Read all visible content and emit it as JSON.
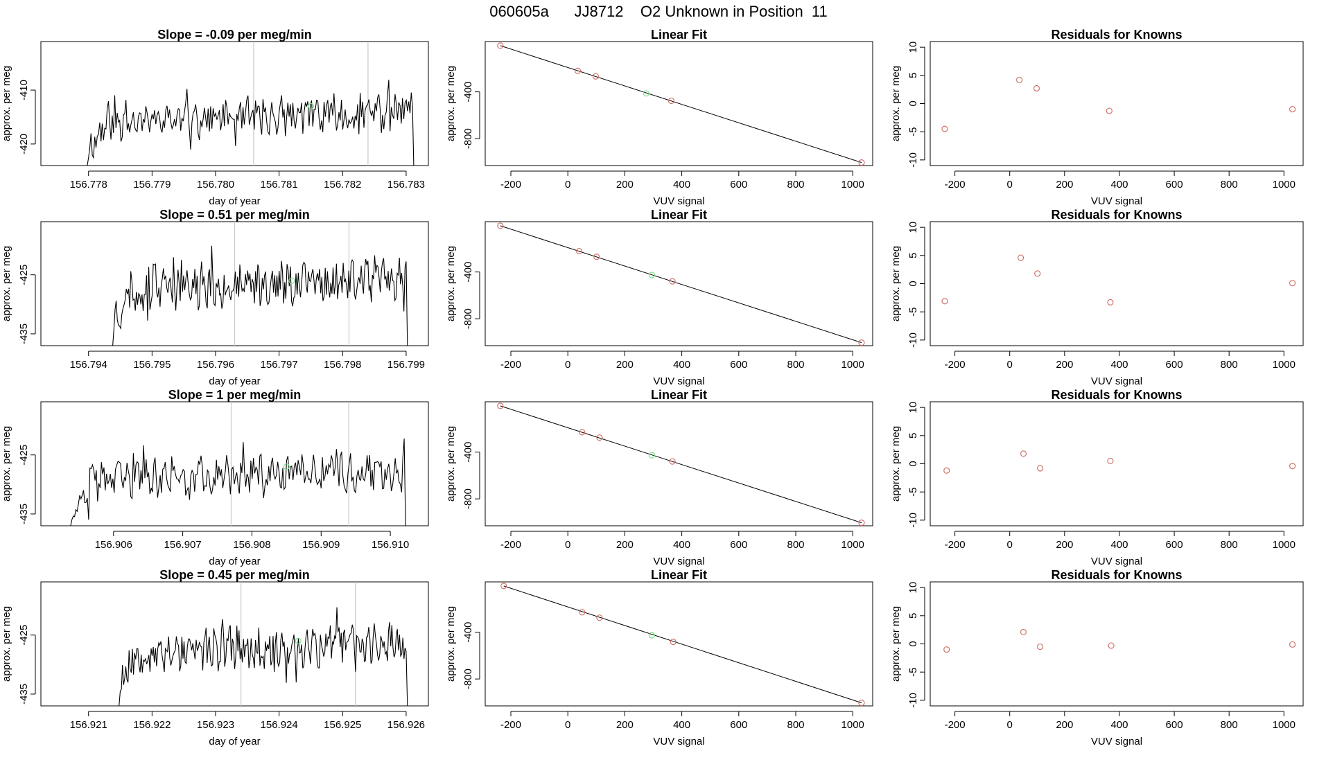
{
  "header": {
    "title": "060605a      JJ8712    O2 Unknown in Position  11"
  },
  "colors": {
    "line": "#000000",
    "known_point": "#d0736b",
    "unknown_point": "#7de08a",
    "marker_line": "#c8c8c8",
    "axis": "#000000"
  },
  "chart_data": [
    {
      "type": "line",
      "row": 1,
      "panel": "timeseries",
      "title": "Slope =  -0.09  per meg/min",
      "xlabel": "day of year",
      "ylabel": "approx. per meg",
      "xlim": [
        156.77725,
        156.78335
      ],
      "ylim": [
        -424,
        -401
      ],
      "xticks": [
        156.778,
        156.779,
        156.78,
        156.781,
        156.782,
        156.783
      ],
      "xtick_labels": [
        "156.778",
        "156.779",
        "156.780",
        "156.781",
        "156.782",
        "156.783"
      ],
      "yticks": [
        -410,
        -420
      ],
      "ytick_labels": [
        "-410",
        "-420"
      ],
      "vlines": [
        156.7806,
        156.7824
      ],
      "unknown_point": {
        "x": 156.7815,
        "y": -413
      },
      "trace": {
        "start": 156.778,
        "end": 156.7831,
        "base": -415.0,
        "amp": 3.0,
        "seed": 11,
        "drop": -424
      }
    },
    {
      "type": "scatter",
      "row": 1,
      "panel": "fit",
      "title": "Linear Fit",
      "xlabel": "VUV signal",
      "ylabel": "approx. per meg",
      "xlim": [
        -290,
        1070
      ],
      "ylim": [
        -1030,
        30
      ],
      "xticks": [
        -200,
        0,
        200,
        400,
        600,
        800,
        1000
      ],
      "xtick_labels": [
        "-200",
        "0",
        "200",
        "400",
        "600",
        "800",
        "1000"
      ],
      "yticks": [
        -400,
        -800
      ],
      "ytick_labels": [
        "-400",
        "-800"
      ],
      "fit_line": {
        "x": [
          -237,
          1031
        ],
        "y": [
          -5,
          -1004
        ]
      },
      "knowns": {
        "x": [
          -237,
          35,
          98,
          363,
          1031
        ],
        "y": [
          -5,
          -220,
          -268,
          -476,
          -1004
        ]
      },
      "unknown": {
        "x": 275,
        "y": -413
      }
    },
    {
      "type": "scatter",
      "row": 1,
      "panel": "residuals",
      "title": "Residuals for Knowns",
      "xlabel": "VUV signal",
      "ylabel": "approx. per meg",
      "xlim": [
        -290,
        1070
      ],
      "ylim": [
        -11,
        11
      ],
      "xticks": [
        -200,
        0,
        200,
        400,
        600,
        800,
        1000
      ],
      "xtick_labels": [
        "-200",
        "0",
        "200",
        "400",
        "600",
        "800",
        "1000"
      ],
      "yticks": [
        10,
        5,
        0,
        -5,
        -10
      ],
      "ytick_labels": [
        "10",
        "5",
        "0",
        "-5",
        "-10"
      ],
      "points": {
        "x": [
          -237,
          35,
          98,
          363,
          1031
        ],
        "y": [
          -4.5,
          4.2,
          2.7,
          -1.3,
          -1.0
        ]
      }
    },
    {
      "type": "line",
      "row": 2,
      "panel": "timeseries",
      "title": "Slope =  0.51  per meg/min",
      "xlabel": "day of year",
      "ylabel": "approx. per meg",
      "xlim": [
        156.79325,
        156.79935
      ],
      "ylim": [
        -437,
        -416
      ],
      "xticks": [
        156.794,
        156.795,
        156.796,
        156.797,
        156.798,
        156.799
      ],
      "xtick_labels": [
        "156.794",
        "156.795",
        "156.796",
        "156.797",
        "156.798",
        "156.799"
      ],
      "yticks": [
        -425,
        -435
      ],
      "ytick_labels": [
        "-425",
        "-435"
      ],
      "vlines": [
        156.7963,
        156.7981
      ],
      "unknown_point": {
        "x": 156.7972,
        "y": -426
      },
      "trace": {
        "start": 156.7944,
        "end": 156.799,
        "base": -426.5,
        "amp": 3.2,
        "seed": 23,
        "drop": -437
      }
    },
    {
      "type": "scatter",
      "row": 2,
      "panel": "fit",
      "title": "Linear Fit",
      "xlabel": "VUV signal",
      "ylabel": "approx. per meg",
      "xlim": [
        -290,
        1070
      ],
      "ylim": [
        -1030,
        30
      ],
      "xticks": [
        -200,
        0,
        200,
        400,
        600,
        800,
        1000
      ],
      "xtick_labels": [
        "-200",
        "0",
        "200",
        "400",
        "600",
        "800",
        "1000"
      ],
      "yticks": [
        -400,
        -800
      ],
      "ytick_labels": [
        "-400",
        "-800"
      ],
      "fit_line": {
        "x": [
          -237,
          1031
        ],
        "y": [
          -5,
          -1004
        ]
      },
      "knowns": {
        "x": [
          -237,
          40,
          101,
          367,
          1031
        ],
        "y": [
          -5,
          -222,
          -270,
          -480,
          -1004
        ]
      },
      "unknown": {
        "x": 295,
        "y": -426
      }
    },
    {
      "type": "scatter",
      "row": 2,
      "panel": "residuals",
      "title": "Residuals for Knowns",
      "xlabel": "VUV signal",
      "ylabel": "approx. per meg",
      "xlim": [
        -290,
        1070
      ],
      "ylim": [
        -11,
        11
      ],
      "xticks": [
        -200,
        0,
        200,
        400,
        600,
        800,
        1000
      ],
      "xtick_labels": [
        "-200",
        "0",
        "200",
        "400",
        "600",
        "800",
        "1000"
      ],
      "yticks": [
        10,
        5,
        0,
        -5,
        -10
      ],
      "ytick_labels": [
        "10",
        "5",
        "0",
        "-5",
        "-10"
      ],
      "points": {
        "x": [
          -237,
          40,
          101,
          367,
          1031
        ],
        "y": [
          -3.1,
          4.6,
          1.8,
          -3.3,
          0.1
        ]
      }
    },
    {
      "type": "line",
      "row": 3,
      "panel": "timeseries",
      "title": "Slope =  1  per meg/min",
      "xlabel": "day of year",
      "ylabel": "approx. per meg",
      "xlim": [
        156.90495,
        156.91055
      ],
      "ylim": [
        -437,
        -416
      ],
      "xticks": [
        156.906,
        156.907,
        156.908,
        156.909,
        156.91
      ],
      "xtick_labels": [
        "156.906",
        "156.907",
        "156.908",
        "156.909",
        "156.910"
      ],
      "yticks": [
        -425,
        -435
      ],
      "ytick_labels": [
        "-425",
        "-435"
      ],
      "vlines": [
        156.9077,
        156.9094
      ],
      "unknown_point": {
        "x": 156.9085,
        "y": -427
      },
      "trace": {
        "start": 156.9054,
        "end": 156.9102,
        "base": -428.5,
        "amp": 2.8,
        "seed": 37,
        "drop": -437
      }
    },
    {
      "type": "scatter",
      "row": 3,
      "panel": "fit",
      "title": "Linear Fit",
      "xlabel": "VUV signal",
      "ylabel": "approx. per meg",
      "xlim": [
        -290,
        1070
      ],
      "ylim": [
        -1030,
        30
      ],
      "xticks": [
        -200,
        0,
        200,
        400,
        600,
        800,
        1000
      ],
      "xtick_labels": [
        "-200",
        "0",
        "200",
        "400",
        "600",
        "800",
        "1000"
      ],
      "yticks": [
        -400,
        -800
      ],
      "ytick_labels": [
        "-400",
        "-800"
      ],
      "fit_line": {
        "x": [
          -237,
          1031
        ],
        "y": [
          -5,
          -1004
        ]
      },
      "knowns": {
        "x": [
          -237,
          50,
          111,
          367,
          1031
        ],
        "y": [
          -5,
          -230,
          -276,
          -480,
          -1004
        ]
      },
      "unknown": {
        "x": 295,
        "y": -427
      }
    },
    {
      "type": "scatter",
      "row": 3,
      "panel": "residuals",
      "title": "Residuals for Knowns",
      "xlabel": "VUV signal",
      "ylabel": "approx. per meg",
      "xlim": [
        -290,
        1070
      ],
      "ylim": [
        -11,
        11
      ],
      "xticks": [
        -200,
        0,
        200,
        400,
        600,
        800,
        1000
      ],
      "xtick_labels": [
        "-200",
        "0",
        "200",
        "400",
        "600",
        "800",
        "1000"
      ],
      "yticks": [
        10,
        5,
        0,
        -5,
        -10
      ],
      "ytick_labels": [
        "10",
        "5",
        "0",
        "-5",
        "-10"
      ],
      "points": {
        "x": [
          -230,
          50,
          111,
          367,
          1031
        ],
        "y": [
          -1.2,
          1.8,
          -0.8,
          0.5,
          -0.4
        ]
      }
    },
    {
      "type": "line",
      "row": 4,
      "panel": "timeseries",
      "title": "Slope =  0.45  per meg/min",
      "xlabel": "day of year",
      "ylabel": "approx. per meg",
      "xlim": [
        156.92025,
        156.92635
      ],
      "ylim": [
        -437,
        -416
      ],
      "xticks": [
        156.921,
        156.922,
        156.923,
        156.924,
        156.925,
        156.926
      ],
      "xtick_labels": [
        "156.921",
        "156.922",
        "156.923",
        "156.924",
        "156.925",
        "156.926"
      ],
      "yticks": [
        -425,
        -435
      ],
      "ytick_labels": [
        "-425",
        "-435"
      ],
      "vlines": [
        156.9234,
        156.9252
      ],
      "unknown_point": {
        "x": 156.9243,
        "y": -426
      },
      "trace": {
        "start": 156.9215,
        "end": 156.926,
        "base": -427.0,
        "amp": 3.0,
        "seed": 53,
        "drop": -437
      }
    },
    {
      "type": "scatter",
      "row": 4,
      "panel": "fit",
      "title": "Linear Fit",
      "xlabel": "VUV signal",
      "ylabel": "approx. per meg",
      "xlim": [
        -290,
        1070
      ],
      "ylim": [
        -1030,
        30
      ],
      "xticks": [
        -200,
        0,
        200,
        400,
        600,
        800,
        1000
      ],
      "xtick_labels": [
        "-200",
        "0",
        "200",
        "400",
        "600",
        "800",
        "1000"
      ],
      "yticks": [
        -400,
        -800
      ],
      "ytick_labels": [
        "-400",
        "-800"
      ],
      "fit_line": {
        "x": [
          -225,
          1031
        ],
        "y": [
          -5,
          -1004
        ]
      },
      "knowns": {
        "x": [
          -225,
          50,
          111,
          370,
          1031
        ],
        "y": [
          -5,
          -230,
          -276,
          -483,
          -1004
        ]
      },
      "unknown": {
        "x": 295,
        "y": -426
      }
    },
    {
      "type": "scatter",
      "row": 4,
      "panel": "residuals",
      "title": "Residuals for Knowns",
      "xlabel": "VUV signal",
      "ylabel": "approx. per meg",
      "xlim": [
        -290,
        1070
      ],
      "ylim": [
        -11,
        11
      ],
      "xticks": [
        -200,
        0,
        200,
        400,
        600,
        800,
        1000
      ],
      "xtick_labels": [
        "-200",
        "0",
        "200",
        "400",
        "600",
        "800",
        "1000"
      ],
      "yticks": [
        10,
        5,
        0,
        -5,
        -10
      ],
      "ytick_labels": [
        "10",
        "5",
        "0",
        "-5",
        "-10"
      ],
      "points": {
        "x": [
          -230,
          50,
          111,
          370,
          1031
        ],
        "y": [
          -1.0,
          2.1,
          -0.5,
          -0.3,
          -0.1
        ]
      }
    }
  ]
}
